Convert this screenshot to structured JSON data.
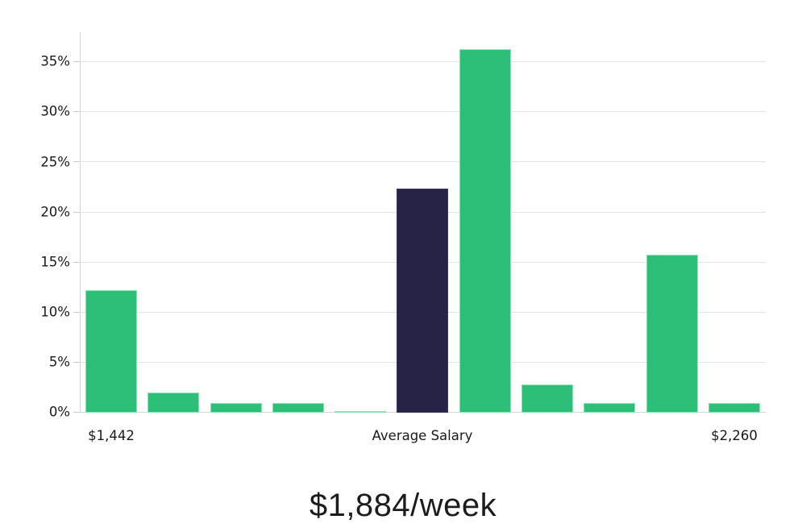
{
  "chart_data": {
    "type": "bar",
    "subtitle": "$1,884/week",
    "values": [
      12.2,
      2.0,
      1.0,
      1.0,
      0.15,
      22.4,
      36.3,
      2.8,
      1.0,
      15.8,
      1.0
    ],
    "highlight_index": 5,
    "x_tick_labels": [
      {
        "label": "$1,442",
        "bar_index": 0
      },
      {
        "label": "Average Salary",
        "bar_index": 5
      },
      {
        "label": "$2,260",
        "bar_index": 10
      }
    ],
    "y_tick_labels": [
      "0%",
      "5%",
      "10%",
      "15%",
      "20%",
      "25%",
      "30%",
      "35%"
    ],
    "y_tick_values": [
      0,
      5,
      10,
      15,
      20,
      25,
      30,
      35
    ],
    "ylim": [
      0,
      38
    ],
    "grid": true,
    "legend": "none",
    "xlabel": "",
    "ylabel": "",
    "colors": {
      "bar_green": "#2dbe78",
      "bar_green_edge": "#8be4b5",
      "bar_highlight": "#272347",
      "bar_highlight_edge": "#3a355f",
      "gridline": "#e4e4e4",
      "axis_line": "#d6d6d6",
      "tick": "#c9c9c9",
      "label_text": "#1a1a1a",
      "subtitle_text": "#1c1c1c",
      "background": "#ffffff"
    }
  }
}
